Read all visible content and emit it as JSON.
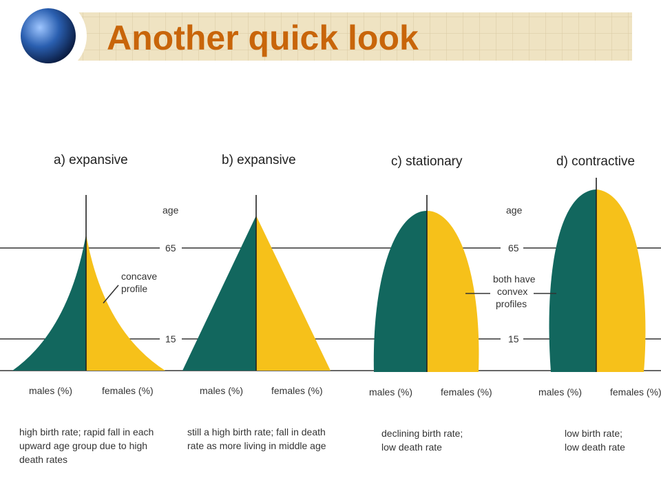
{
  "header": {
    "title": "Another quick look"
  },
  "axis": {
    "label": "age",
    "upper": "65",
    "lower": "15"
  },
  "panels": [
    {
      "label": "a) expansive",
      "males": "males (%)",
      "females": "females (%)",
      "caption": [
        "high birth rate; rapid fall in each",
        "upward age group due to high",
        "death rates"
      ],
      "note": [
        "concave",
        "profile"
      ]
    },
    {
      "label": "b) expansive",
      "males": "males (%)",
      "females": "females (%)",
      "caption": [
        "still a high birth rate; fall in death",
        "rate as more living in middle age"
      ]
    },
    {
      "label": "c) stationary",
      "males": "males (%)",
      "females": "females (%)",
      "caption": [
        "declining birth rate;",
        "low death rate"
      ],
      "note": [
        "both have",
        "convex",
        "profiles"
      ]
    },
    {
      "label": "d) contractive",
      "males": "males (%)",
      "females": "females (%)",
      "caption": [
        "low birth rate;",
        "low death rate"
      ]
    }
  ]
}
